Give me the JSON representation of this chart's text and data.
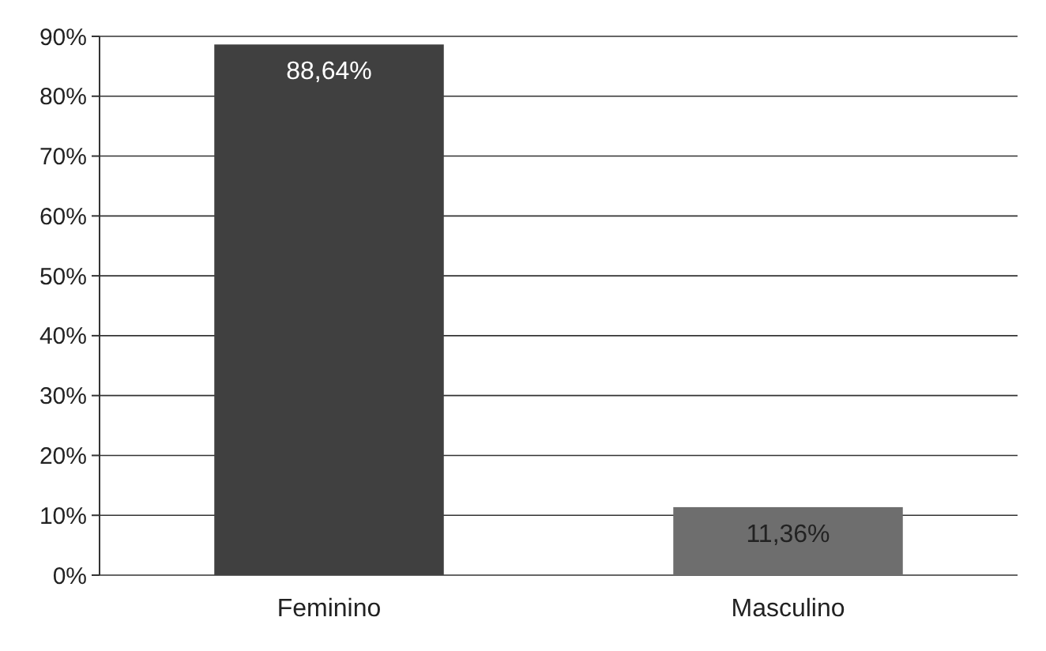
{
  "chart_data": {
    "type": "bar",
    "categories": [
      "Feminino",
      "Masculino"
    ],
    "values": [
      88.64,
      11.36
    ],
    "colors": [
      "#404040",
      "#6e6e6e"
    ],
    "value_labels": [
      "88,64%",
      "11,36%"
    ],
    "ylim": [
      0,
      90
    ],
    "yticks": [
      {
        "value": 0,
        "label": "0%"
      },
      {
        "value": 10,
        "label": "10%"
      },
      {
        "value": 20,
        "label": "20%"
      },
      {
        "value": 30,
        "label": "30%"
      },
      {
        "value": 40,
        "label": "40%"
      },
      {
        "value": 50,
        "label": "50%"
      },
      {
        "value": 60,
        "label": "60%"
      },
      {
        "value": 70,
        "label": "70%"
      },
      {
        "value": 80,
        "label": "80%"
      },
      {
        "value": 90,
        "label": "90%"
      }
    ],
    "grid": "y"
  }
}
